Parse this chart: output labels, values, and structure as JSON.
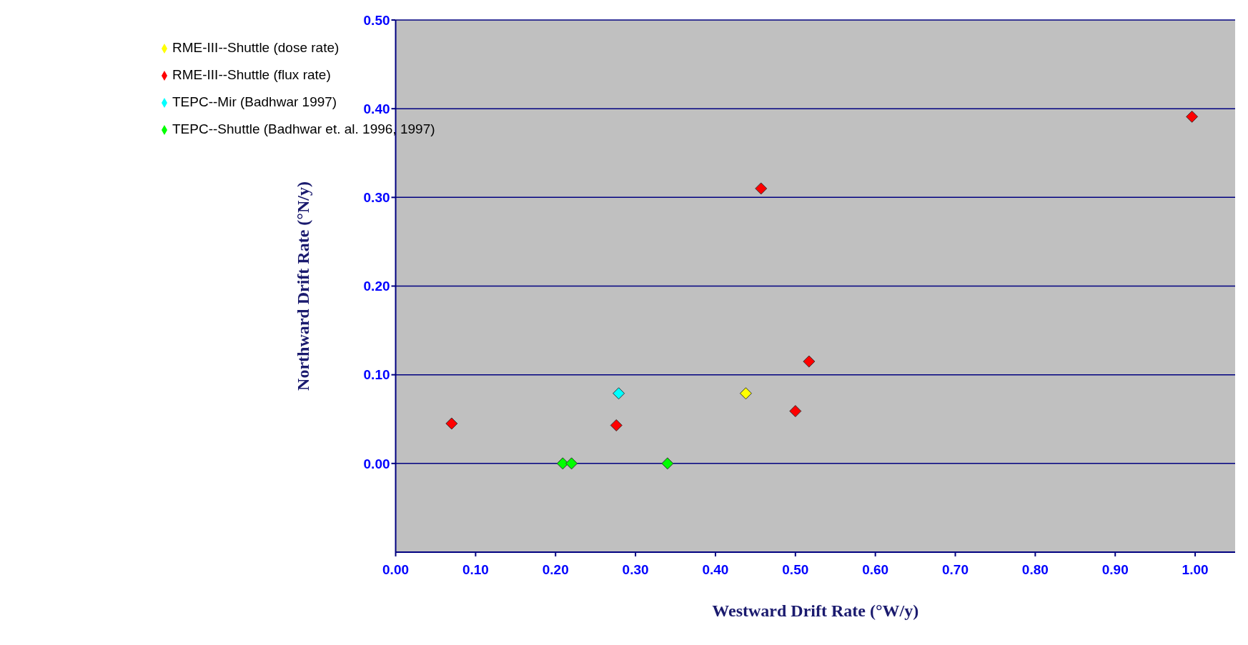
{
  "chart_data": {
    "type": "scatter",
    "xlabel": "Westward Drift Rate (°W/y)",
    "ylabel": "Northward Drift Rate (°N/y)",
    "xlim": [
      0,
      1.05
    ],
    "ylim": [
      -0.1,
      0.5
    ],
    "xticks": [
      {
        "value": 0,
        "label": "0.00"
      },
      {
        "value": 0.1,
        "label": "0.10"
      },
      {
        "value": 0.2,
        "label": "0.20"
      },
      {
        "value": 0.3,
        "label": "0.30"
      },
      {
        "value": 0.4,
        "label": "0.40"
      },
      {
        "value": 0.5,
        "label": "0.50"
      },
      {
        "value": 0.6,
        "label": "0.60"
      },
      {
        "value": 0.7,
        "label": "0.70"
      },
      {
        "value": 0.8,
        "label": "0.80"
      },
      {
        "value": 0.9,
        "label": "0.90"
      },
      {
        "value": 1.0,
        "label": "1.00"
      }
    ],
    "yticks": [
      {
        "value": 0,
        "label": "0.00"
      },
      {
        "value": 0.1,
        "label": "0.10"
      },
      {
        "value": 0.2,
        "label": "0.20"
      },
      {
        "value": 0.3,
        "label": "0.30"
      },
      {
        "value": 0.4,
        "label": "0.40"
      },
      {
        "value": 0.5,
        "label": "0.50"
      }
    ],
    "grid": "y",
    "legend": "top left",
    "marker": "diamond",
    "series": [
      {
        "name": "RME-III--Shuttle (flux rate)",
        "color": "#ff0000",
        "x": [
          0.07,
          0.276,
          0.457,
          0.5,
          0.517,
          0.996
        ],
        "values": [
          0.045,
          0.043,
          0.31,
          0.059,
          0.115,
          0.391
        ]
      },
      {
        "name": "RME-III--Shuttle (dose rate)",
        "color": "#ffff00",
        "x": [
          0.438
        ],
        "values": [
          0.079
        ]
      },
      {
        "name": "TEPC--Shuttle (Badhwar et. al. 1996, 1997)",
        "color": "#00ff00",
        "x": [
          0.209,
          0.22,
          0.34
        ],
        "values": [
          0,
          0,
          0
        ]
      },
      {
        "name": "TEPC--Mir (Badhwar 1997)",
        "color": "#00ffff",
        "x": [
          0.279
        ],
        "values": [
          0.079
        ]
      }
    ]
  }
}
